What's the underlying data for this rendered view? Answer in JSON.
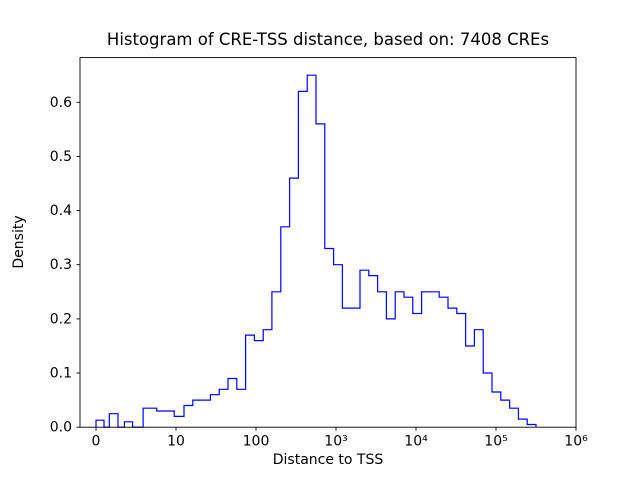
{
  "chart_data": {
    "type": "histogram-step",
    "title": "Histogram of CRE-TSS distance, based on: 7408 CREs",
    "xlabel": "Distance to TSS",
    "ylabel": "Density",
    "x_scale": "symlog",
    "grid": false,
    "legend": "none",
    "line_color": "#0000ff",
    "ylim": [
      0,
      0.6825
    ],
    "xlim_labels": [
      "0",
      "10⁶"
    ],
    "xticks": [
      {
        "value": 0,
        "label": "0"
      },
      {
        "value": 10,
        "label": "10"
      },
      {
        "value": 100,
        "label": "100"
      },
      {
        "value": 1000,
        "label": "10³"
      },
      {
        "value": 10000,
        "label": "10⁴"
      },
      {
        "value": 100000,
        "label": "10⁵"
      },
      {
        "value": 1000000,
        "label": "10⁶"
      }
    ],
    "yticks": [
      {
        "value": 0.0,
        "label": "0.0"
      },
      {
        "value": 0.1,
        "label": "0.1"
      },
      {
        "value": 0.2,
        "label": "0.2"
      },
      {
        "value": 0.3,
        "label": "0.3"
      },
      {
        "value": 0.4,
        "label": "0.4"
      },
      {
        "value": 0.5,
        "label": "0.5"
      },
      {
        "value": 0.6,
        "label": "0.6"
      }
    ],
    "bin_edges": [
      0,
      1,
      1.29,
      1.66,
      2.14,
      2.75,
      3.55,
      4.57,
      5.89,
      7.59,
      9.77,
      12.6,
      16.2,
      20.9,
      26.9,
      34.7,
      44.7,
      57.5,
      74.1,
      95.5,
      123,
      158,
      204,
      263,
      339,
      436,
      562,
      724,
      933,
      1202,
      1549,
      1995,
      2570,
      3311,
      4266,
      5495,
      7079,
      9120,
      11750,
      15140,
      19500,
      25120,
      32360,
      41690,
      53700,
      69180,
      89130,
      114800,
      147900,
      190500,
      245500,
      316200
    ],
    "densities": [
      0.013,
      0,
      0,
      0.025,
      0.025,
      0,
      0.01,
      0,
      0.035,
      0.03,
      0.02,
      0.04,
      0.05,
      0.05,
      0.06,
      0.07,
      0.09,
      0.07,
      0.17,
      0.16,
      0.18,
      0.25,
      0.37,
      0.46,
      0.62,
      0.65,
      0.56,
      0.33,
      0.3,
      0.22,
      0.22,
      0.29,
      0.28,
      0.25,
      0.2,
      0.25,
      0.24,
      0.21,
      0.25,
      0.25,
      0.24,
      0.22,
      0.21,
      0.15,
      0.18,
      0.1,
      0.065,
      0.05,
      0.035,
      0.015,
      0.005
    ]
  }
}
